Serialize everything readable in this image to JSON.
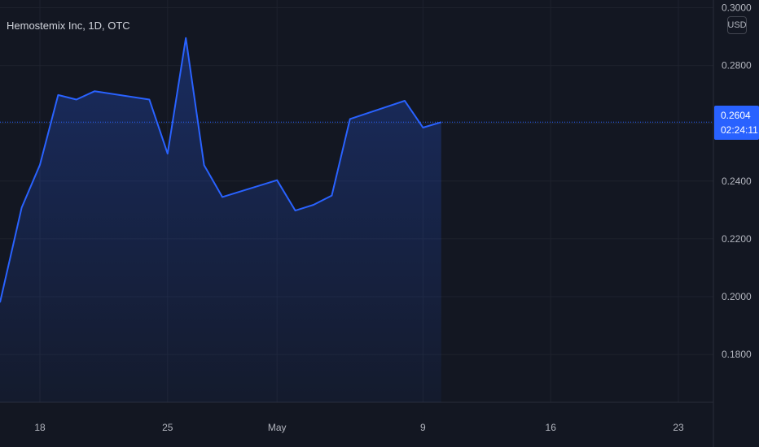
{
  "legend": {
    "symbol": "Hemostemix Inc, 1D, OTC"
  },
  "price_scale": {
    "currency": "USD"
  },
  "last_price": {
    "price": "0.2604",
    "countdown": "02:24:11"
  },
  "colors": {
    "background": "#131722",
    "grid": "#1e222d",
    "line": "#2962ff",
    "text": "#b2b5be"
  },
  "chart_data": {
    "type": "area",
    "x": [
      "2023-04-14",
      "2023-04-17",
      "2023-04-18",
      "2023-04-19",
      "2023-04-20",
      "2023-04-21",
      "2023-04-24",
      "2023-04-25",
      "2023-04-26",
      "2023-04-27",
      "2023-04-28",
      "2023-05-01",
      "2023-05-02",
      "2023-05-03",
      "2023-05-04",
      "2023-05-05",
      "2023-05-08",
      "2023-05-09",
      "2023-05-10"
    ],
    "series": [
      {
        "values": [
          0.198,
          0.2308,
          0.2456,
          0.2698,
          0.2682,
          0.2711,
          0.2682,
          0.2495,
          0.2895,
          0.2455,
          0.2345,
          0.2403,
          0.2298,
          0.2318,
          0.235,
          0.2615,
          0.2678,
          0.2585,
          0.2604
        ]
      }
    ],
    "y_ticks": [
      "0.1800",
      "0.2000",
      "0.2200",
      "0.2400",
      "0.2600",
      "0.2800",
      "0.3000"
    ],
    "x_ticks": [
      {
        "date": "2023-04-18",
        "label": "18"
      },
      {
        "date": "2023-04-25",
        "label": "25"
      },
      {
        "date": "2023-05-01",
        "label": "May"
      },
      {
        "date": "2023-05-09",
        "label": "9"
      },
      {
        "date": "2023-05-16",
        "label": "16"
      },
      {
        "date": "2023-05-23",
        "label": "23"
      }
    ],
    "grid": true
  }
}
